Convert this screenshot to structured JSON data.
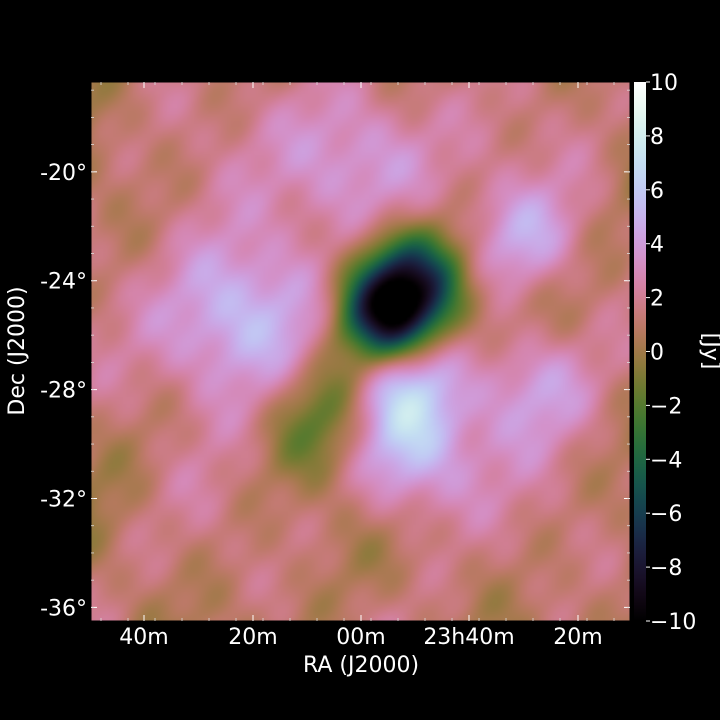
{
  "chart_data": {
    "type": "heatmap",
    "title": "",
    "xlabel": "RA (J2000)",
    "ylabel": "Dec (J2000)",
    "colorbar_label": "[Jy]",
    "colormap": "cubehelix",
    "colorbar_range": [
      -10,
      10
    ],
    "colorbar_ticks": [
      "10",
      "8",
      "6",
      "4",
      "2",
      "0",
      "−2",
      "−4",
      "−6",
      "−8",
      "−10"
    ],
    "x_ticks": [
      "40m",
      "20m",
      "00m",
      "23h40m",
      "20m"
    ],
    "y_ticks": [
      "-20°",
      "-24°",
      "-28°",
      "-32°",
      "-36°"
    ],
    "y_tick_values_deg": [
      -20,
      -24,
      -28,
      -32,
      -36
    ],
    "dec_range_deg": [
      -36.5,
      -16.7
    ],
    "grid": false,
    "background_color": "#000000",
    "features": [
      {
        "ra_offset": -0.22,
        "dec": -25.5,
        "value": 5.5,
        "sigma": 2.2,
        "description": "bright emission west"
      },
      {
        "ra_offset": 0.05,
        "dec": -25.3,
        "value": -9.5,
        "sigma": 1.3,
        "description": "deepest absorption"
      },
      {
        "ra_offset": 0.09,
        "dec": -24.0,
        "value": -7.0,
        "sigma": 1.4,
        "description": "absorption north"
      },
      {
        "ra_offset": 0.07,
        "dec": -27.8,
        "value": 5.0,
        "sigma": 1.5,
        "description": "emission south of center"
      },
      {
        "ra_offset": 0.08,
        "dec": -30.3,
        "value": 5.5,
        "sigma": 1.7,
        "description": "emission south"
      },
      {
        "ra_offset": 0.0,
        "dec": -19.5,
        "value": 4.0,
        "sigma": 2.0,
        "description": "emission north"
      },
      {
        "ra_offset": 0.3,
        "dec": -22.5,
        "value": 3.5,
        "sigma": 1.5,
        "description": "emission northeast"
      },
      {
        "ra_offset": 0.32,
        "dec": -27.8,
        "value": 3.5,
        "sigma": 1.6,
        "description": "emission east"
      },
      {
        "ra_offset": -0.04,
        "dec": -28.8,
        "value": -4.5,
        "sigma": 1.8,
        "description": "absorption southwest"
      }
    ]
  }
}
